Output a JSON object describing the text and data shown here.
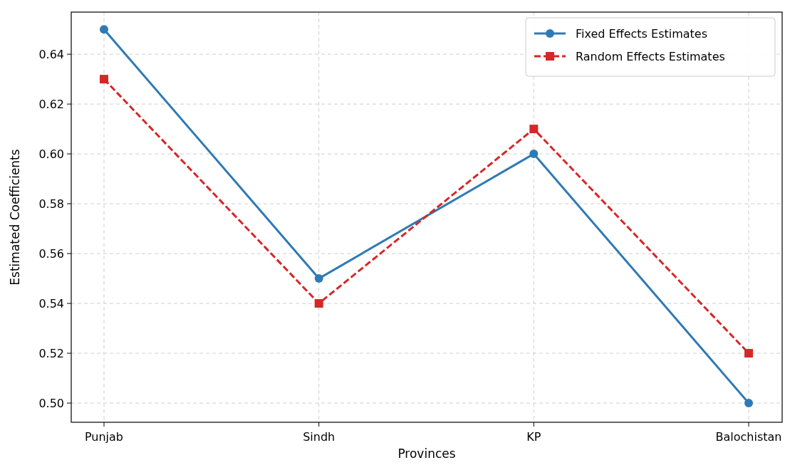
{
  "chart_data": {
    "type": "line",
    "xlabel": "Provinces",
    "ylabel": "Estimated Coefficients",
    "categories": [
      "Punjab",
      "Sindh",
      "KP",
      "Balochistan"
    ],
    "series": [
      {
        "name": "Fixed Effects Estimates",
        "color": "#2e7ab6",
        "values": [
          0.65,
          0.55,
          0.6,
          0.5
        ],
        "marker": "circle",
        "line_style": "solid"
      },
      {
        "name": "Random Effects Estimates",
        "color": "#d62728",
        "values": [
          0.63,
          0.54,
          0.61,
          0.52
        ],
        "marker": "square",
        "line_style": "dashed"
      }
    ],
    "ylim": [
      0.4923,
      0.6569
    ],
    "yticks": [
      {
        "value": 0.5,
        "label": "0.50"
      },
      {
        "value": 0.52,
        "label": "0.52"
      },
      {
        "value": 0.54,
        "label": "0.54"
      },
      {
        "value": 0.56,
        "label": "0.56"
      },
      {
        "value": 0.58,
        "label": "0.58"
      },
      {
        "value": 0.6,
        "label": "0.60"
      },
      {
        "value": 0.62,
        "label": "0.62"
      },
      {
        "value": 0.64,
        "label": "0.64"
      }
    ],
    "grid": true,
    "legend": "top right"
  }
}
